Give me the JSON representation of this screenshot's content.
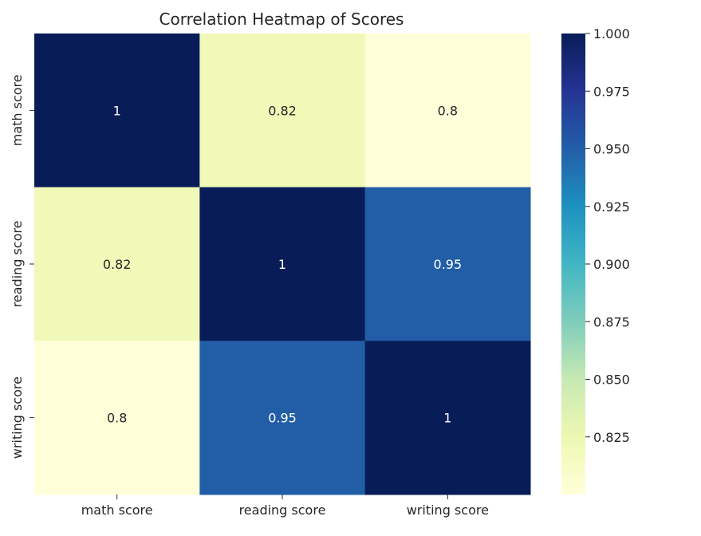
{
  "chart_data": {
    "type": "heatmap",
    "title": "Correlation Heatmap of Scores",
    "xlabel": "",
    "ylabel": "",
    "x_categories": [
      "math score",
      "reading score",
      "writing score"
    ],
    "y_categories": [
      "math score",
      "reading score",
      "writing score"
    ],
    "values": [
      [
        1,
        0.82,
        0.8
      ],
      [
        0.82,
        1,
        0.95
      ],
      [
        0.8,
        0.95,
        1
      ]
    ],
    "annotations": [
      [
        "1",
        "0.82",
        "0.8"
      ],
      [
        "0.82",
        "1",
        "0.95"
      ],
      [
        "0.8",
        "0.95",
        "1"
      ]
    ],
    "colormap": "YlGnBu",
    "colorbar": {
      "range": [
        0.8,
        1.0
      ],
      "ticks": [
        1.0,
        0.975,
        0.95,
        0.925,
        0.9,
        0.875,
        0.85,
        0.825
      ],
      "tick_labels": [
        "1.000",
        "0.975",
        "0.950",
        "0.925",
        "0.900",
        "0.875",
        "0.850",
        "0.825"
      ]
    }
  }
}
